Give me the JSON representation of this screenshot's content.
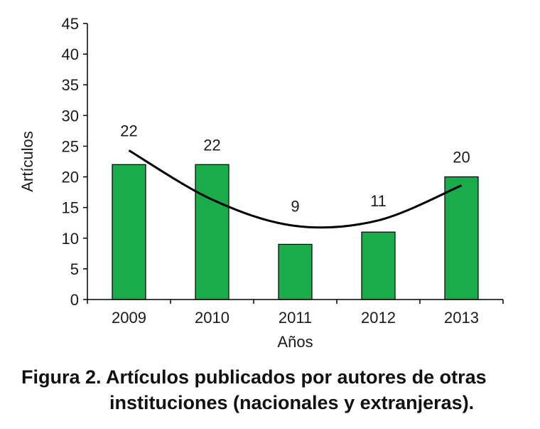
{
  "chart_data": {
    "type": "bar",
    "categories": [
      "2009",
      "2010",
      "2011",
      "2012",
      "2013"
    ],
    "values": [
      22,
      22,
      9,
      11,
      20
    ],
    "data_labels": [
      "22",
      "22",
      "9",
      "11",
      "20"
    ],
    "xlabel": "Años",
    "ylabel": "Artículos",
    "ylim": [
      0,
      45
    ],
    "yticks": [
      0,
      5,
      10,
      15,
      20,
      25,
      30,
      35,
      40,
      45
    ],
    "grid": false,
    "bar_color": "#1aac4a",
    "bar_edge_color": "#000000",
    "trendline": {
      "type": "polynomial",
      "color": "#000000",
      "points": [
        [
          2009,
          24.3
        ],
        [
          2010,
          16.3
        ],
        [
          2011,
          12.0
        ],
        [
          2012,
          12.9
        ],
        [
          2013,
          18.6
        ]
      ]
    }
  },
  "caption": {
    "line1": "Figura 2. Artículos publicados por autores de otras",
    "line2": "instituciones (nacionales y extranjeras)."
  }
}
